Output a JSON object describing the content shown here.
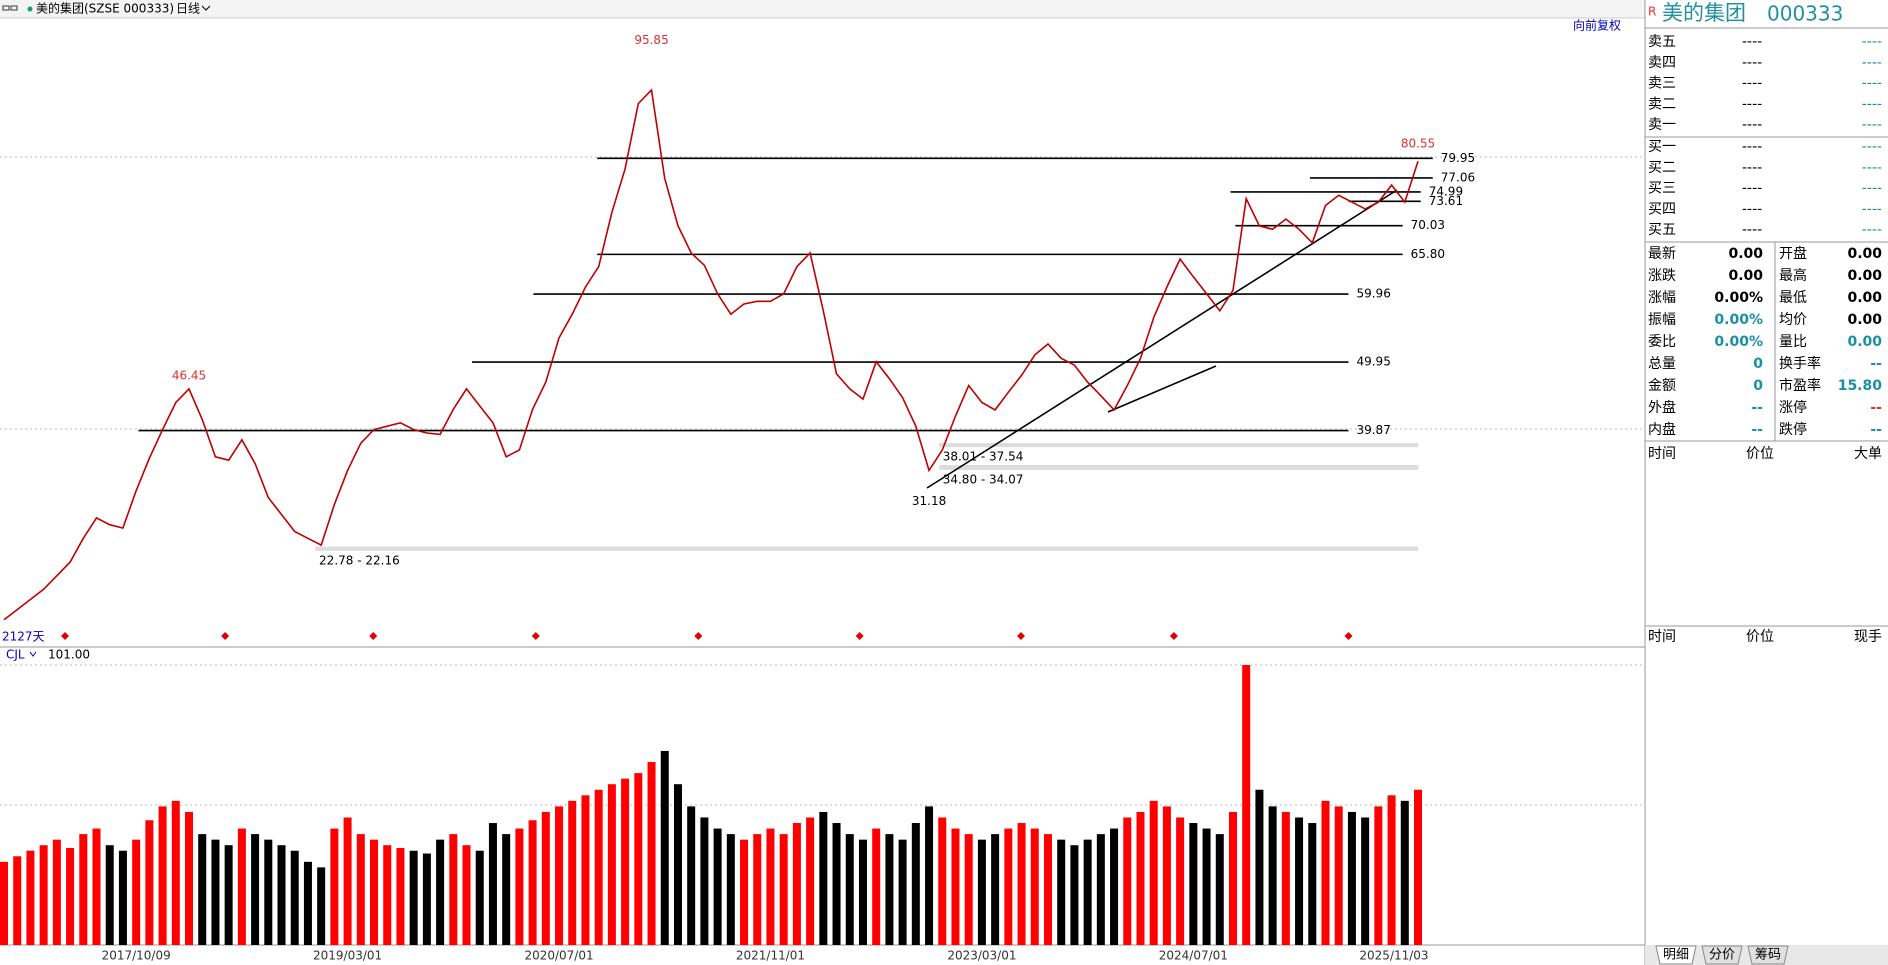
{
  "toolbar": {
    "symbol": "美的集团(SZSE 000333)",
    "period": "日线"
  },
  "chart_data": [
    {
      "type": "line",
      "adjust_label": "向前复权",
      "days_label": "2127天",
      "color": "#c00000",
      "categories": [
        null,
        null,
        null,
        null,
        null,
        null,
        null,
        null,
        null,
        null,
        "2017/10/09",
        null,
        null,
        null,
        null,
        null,
        null,
        null,
        null,
        null,
        null,
        null,
        null,
        null,
        null,
        null,
        "2019/03/01",
        null,
        null,
        null,
        null,
        null,
        null,
        null,
        null,
        null,
        null,
        null,
        null,
        null,
        null,
        null,
        "2020/07/01",
        null,
        null,
        null,
        null,
        null,
        null,
        null,
        null,
        null,
        null,
        null,
        null,
        null,
        null,
        null,
        "2021/11/01",
        null,
        null,
        null,
        null,
        null,
        null,
        null,
        null,
        null,
        null,
        null,
        null,
        null,
        null,
        null,
        "2023/03/01",
        null,
        null,
        null,
        null,
        null,
        null,
        null,
        null,
        null,
        null,
        null,
        null,
        null,
        null,
        null,
        "2024/07/01",
        null,
        null,
        null,
        null,
        null,
        null,
        null,
        null,
        null,
        null,
        null,
        null,
        null,
        null,
        null,
        null,
        "2025/11/03"
      ],
      "values": [
        12,
        13.5,
        15,
        16.5,
        18.5,
        20.5,
        24,
        27,
        26,
        25.5,
        31,
        35.8,
        40,
        44,
        46,
        41.5,
        36,
        35.5,
        38.5,
        35,
        30,
        27.5,
        25,
        24,
        23,
        29,
        34,
        38,
        40,
        40.5,
        41,
        40,
        39.5,
        39.3,
        43,
        46,
        43.5,
        41,
        36,
        37,
        43,
        47,
        53.5,
        57,
        61,
        64,
        72,
        78.4,
        88,
        90,
        77,
        70,
        66,
        64.2,
        60,
        57,
        58.5,
        58.9,
        58.9,
        60,
        64,
        66,
        57.5,
        48.2,
        46,
        44.5,
        50,
        47.5,
        44.7,
        40.5,
        34,
        37,
        42,
        46.5,
        44,
        42.9,
        45.5,
        48,
        51,
        52.6,
        50.5,
        49.5,
        47,
        45,
        42.9,
        46.5,
        50.5,
        56.5,
        61,
        65.1,
        62.5,
        60,
        57.5,
        60.5,
        74,
        70,
        69.5,
        71,
        69.5,
        67.5,
        73,
        74.5,
        73.5,
        72.5,
        73.5,
        76,
        73.5,
        79.5
      ],
      "ylim": [
        8,
        100.6
      ],
      "levels": [
        79.95,
        77.06,
        74.99,
        73.61,
        70.03,
        {
          "value": 65.8,
          "label": "65.80"
        },
        59.96,
        49.95,
        39.87
      ],
      "zones": [
        {
          "label": "38.01 - 37.54",
          "high": 38.01,
          "low": 37.54
        },
        {
          "label": "34.80 - 34.07",
          "high": 34.8,
          "low": 34.07
        },
        {
          "label": "22.78 - 22.16",
          "high": 22.78,
          "low": 22.16
        }
      ],
      "annotations": [
        {
          "value": 95.85,
          "color": "#e03030"
        },
        {
          "value": 46.45,
          "color": "#e03030"
        },
        {
          "value": 31.18,
          "color": "#000000"
        },
        {
          "value": 80.55,
          "color": "#e03030"
        }
      ]
    },
    {
      "type": "bar",
      "indicator": "CJL",
      "values": [
        30,
        32,
        34,
        36,
        38,
        35,
        40,
        42,
        36,
        34,
        38,
        45,
        50,
        52,
        48,
        40,
        38,
        36,
        42,
        40,
        38,
        36,
        34,
        30,
        28,
        42,
        46,
        40,
        38,
        36,
        35,
        34,
        33,
        38,
        40,
        36,
        34,
        44,
        40,
        42,
        45,
        48,
        50,
        52,
        54,
        56,
        58,
        60,
        62,
        66,
        70,
        58,
        50,
        46,
        42,
        40,
        38,
        40,
        42,
        40,
        44,
        46,
        48,
        44,
        40,
        38,
        42,
        40,
        38,
        44,
        50,
        46,
        42,
        40,
        38,
        40,
        42,
        44,
        42,
        40,
        38,
        36,
        38,
        40,
        42,
        46,
        48,
        52,
        50,
        46,
        44,
        42,
        40,
        48,
        101,
        56,
        50,
        48,
        46,
        44,
        52,
        50,
        48,
        46,
        50,
        54,
        52,
        56
      ],
      "ylim": [
        0,
        101
      ],
      "yticks": [
        {
          "value": 101,
          "label": "101.00"
        }
      ],
      "up_color": "#ff0000",
      "down_color": "#000000"
    }
  ],
  "quote_panel": {
    "flag": "R",
    "name": "美的集团",
    "code": "000333",
    "asks": [
      {
        "label": "卖五",
        "price": "----",
        "volume": "----"
      },
      {
        "label": "卖四",
        "price": "----",
        "volume": "----"
      },
      {
        "label": "卖三",
        "price": "----",
        "volume": "----"
      },
      {
        "label": "卖二",
        "price": "----",
        "volume": "----"
      },
      {
        "label": "卖一",
        "price": "----",
        "volume": "----"
      }
    ],
    "bids": [
      {
        "label": "买一",
        "price": "----",
        "volume": "----"
      },
      {
        "label": "买二",
        "price": "----",
        "volume": "----"
      },
      {
        "label": "买三",
        "price": "----",
        "volume": "----"
      },
      {
        "label": "买四",
        "price": "----",
        "volume": "----"
      },
      {
        "label": "买五",
        "price": "----",
        "volume": "----"
      }
    ],
    "stats": [
      [
        {
          "label": "最新",
          "value": "0.00",
          "color": "#000000"
        },
        {
          "label": "开盘",
          "value": "0.00",
          "color": "#000000"
        }
      ],
      [
        {
          "label": "涨跌",
          "value": "0.00",
          "color": "#000000"
        },
        {
          "label": "最高",
          "value": "0.00",
          "color": "#000000"
        }
      ],
      [
        {
          "label": "涨幅",
          "value": "0.00%",
          "color": "#000000"
        },
        {
          "label": "最低",
          "value": "0.00",
          "color": "#000000"
        }
      ],
      [
        {
          "label": "振幅",
          "value": "0.00%",
          "color": "#1a8fa8"
        },
        {
          "label": "均价",
          "value": "0.00",
          "color": "#000000"
        }
      ],
      [
        {
          "label": "委比",
          "value": "0.00%",
          "color": "#1a8fa8"
        },
        {
          "label": "量比",
          "value": "0.00",
          "color": "#1a8fa8"
        }
      ],
      [
        {
          "label": "总量",
          "value": "0",
          "color": "#1a8fa8"
        },
        {
          "label": "换手率",
          "value": "--",
          "color": "#1a8fa8"
        }
      ],
      [
        {
          "label": "金额",
          "value": "0",
          "color": "#1a8fa8"
        },
        {
          "label": "市盈率",
          "value": "15.80",
          "color": "#1a8fa8"
        }
      ],
      [
        {
          "label": "外盘",
          "value": "--",
          "color": "#1a8fa8"
        },
        {
          "label": "涨停",
          "value": "--",
          "color": "#e03030"
        }
      ],
      [
        {
          "label": "内盘",
          "value": "--",
          "color": "#1a8fa8"
        },
        {
          "label": "跌停",
          "value": "--",
          "color": "#1a8fa8"
        }
      ]
    ],
    "big_trade_headers": [
      "时间",
      "价位",
      "大单"
    ],
    "tick_headers": [
      "时间",
      "价位",
      "现手"
    ],
    "tabs": [
      "明细",
      "分价",
      "筹码"
    ]
  }
}
